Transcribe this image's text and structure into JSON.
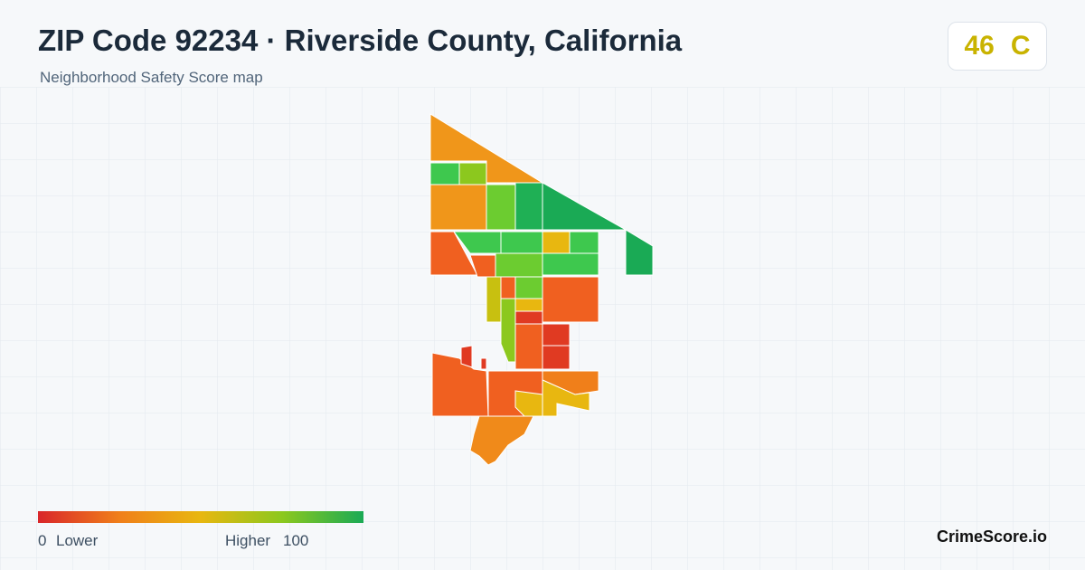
{
  "header": {
    "title": "ZIP Code 92234 · Riverside County, California",
    "subtitle": "Neighborhood Safety Score map"
  },
  "badge": {
    "score": 46,
    "grade": "C"
  },
  "legend": {
    "min": 0,
    "low_label": "Lower",
    "high_label": "Higher",
    "max": 100
  },
  "footer": {
    "brand": "CrimeScore.io"
  }
}
